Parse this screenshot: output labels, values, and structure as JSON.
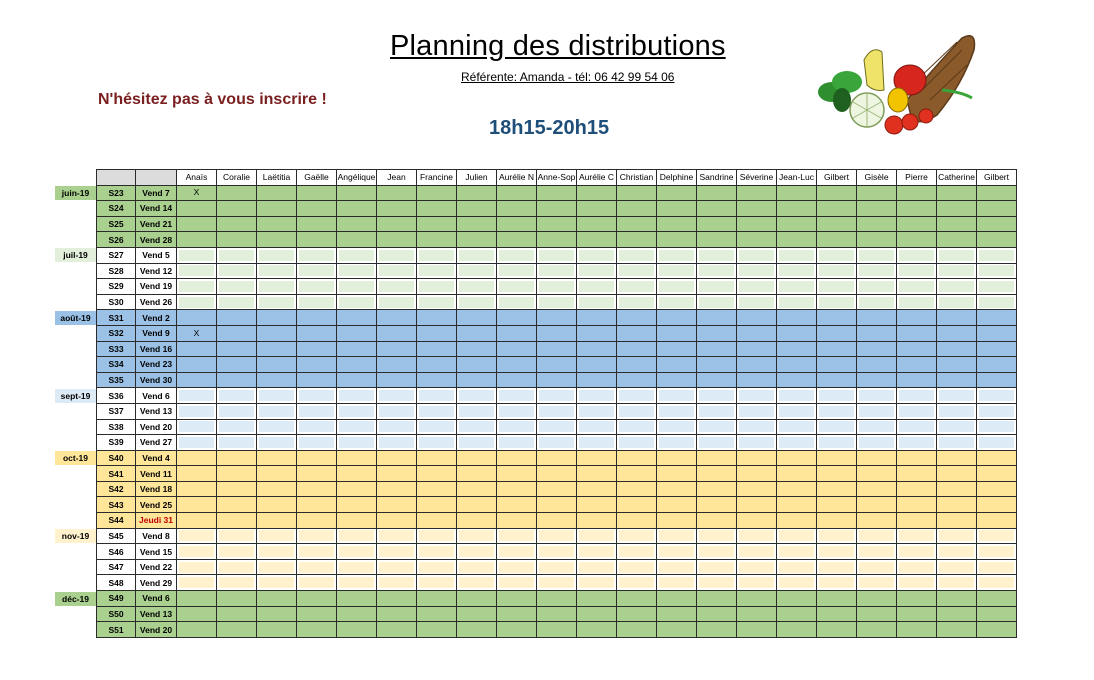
{
  "header": {
    "title": "Planning des distributions",
    "referent": "Référente: Amanda - tél: 06 42 99 54 06",
    "cta": "N'hésitez pas à vous inscrire !",
    "hours": "18h15-20h15"
  },
  "columns": [
    "Anaïs",
    "Coralie",
    "Laëtitia",
    "Gaëlle",
    "Angélique",
    "Jean",
    "Francine",
    "Julien",
    "Aurélie N",
    "Anne-Sop",
    "Aurélie C",
    "Christian",
    "Delphine",
    "Sandrine",
    "Séverine",
    "Jean-Luc",
    "Gilbert",
    "Gisèle",
    "Pierre",
    "Catherine",
    "Gilbert"
  ],
  "months": [
    {
      "label": "juin-19",
      "row": 0,
      "color": "#a9d08e"
    },
    {
      "label": "juil-19",
      "row": 4,
      "color": "#e2efda"
    },
    {
      "label": "août-19",
      "row": 8,
      "color": "#9bc2e6"
    },
    {
      "label": "sept-19",
      "row": 13,
      "color": "#ddebf7"
    },
    {
      "label": "oct-19",
      "row": 17,
      "color": "#ffe699"
    },
    {
      "label": "nov-19",
      "row": 22,
      "color": "#fff2cc"
    },
    {
      "label": "déc-19",
      "row": 26,
      "color": "#a9d08e"
    }
  ],
  "rows": [
    {
      "week": "S23",
      "date": "Vend 7",
      "row_color": "#a9d08e",
      "cell_color": "#a9d08e",
      "marks": [
        0
      ]
    },
    {
      "week": "S24",
      "date": "Vend 14",
      "row_color": "#a9d08e",
      "cell_color": "#a9d08e",
      "marks": []
    },
    {
      "week": "S25",
      "date": "Vend 21",
      "row_color": "#a9d08e",
      "cell_color": "#a9d08e",
      "marks": []
    },
    {
      "week": "S26",
      "date": "Vend 28",
      "row_color": "#a9d08e",
      "cell_color": "#a9d08e",
      "marks": []
    },
    {
      "week": "S27",
      "date": "Vend 5",
      "row_color": "#ffffff",
      "cell_color": "#e2efda",
      "marks": []
    },
    {
      "week": "S28",
      "date": "Vend 12",
      "row_color": "#ffffff",
      "cell_color": "#e2efda",
      "marks": []
    },
    {
      "week": "S29",
      "date": "Vend 19",
      "row_color": "#ffffff",
      "cell_color": "#e2efda",
      "marks": []
    },
    {
      "week": "S30",
      "date": "Vend 26",
      "row_color": "#ffffff",
      "cell_color": "#e2efda",
      "marks": []
    },
    {
      "week": "S31",
      "date": "Vend 2",
      "row_color": "#9bc2e6",
      "cell_color": "#9bc2e6",
      "marks": []
    },
    {
      "week": "S32",
      "date": "Vend 9",
      "row_color": "#9bc2e6",
      "cell_color": "#9bc2e6",
      "marks": [
        0
      ]
    },
    {
      "week": "S33",
      "date": "Vend 16",
      "row_color": "#9bc2e6",
      "cell_color": "#9bc2e6",
      "marks": []
    },
    {
      "week": "S34",
      "date": "Vend 23",
      "row_color": "#9bc2e6",
      "cell_color": "#9bc2e6",
      "marks": []
    },
    {
      "week": "S35",
      "date": "Vend 30",
      "row_color": "#9bc2e6",
      "cell_color": "#9bc2e6",
      "marks": []
    },
    {
      "week": "S36",
      "date": "Vend 6",
      "row_color": "#ffffff",
      "cell_color": "#ddebf7",
      "marks": []
    },
    {
      "week": "S37",
      "date": "Vend 13",
      "row_color": "#ffffff",
      "cell_color": "#ddebf7",
      "marks": []
    },
    {
      "week": "S38",
      "date": "Vend 20",
      "row_color": "#ffffff",
      "cell_color": "#ddebf7",
      "marks": []
    },
    {
      "week": "S39",
      "date": "Vend 27",
      "row_color": "#ffffff",
      "cell_color": "#ddebf7",
      "marks": []
    },
    {
      "week": "S40",
      "date": "Vend 4",
      "row_color": "#ffe699",
      "cell_color": "#ffe699",
      "marks": []
    },
    {
      "week": "S41",
      "date": "Vend 11",
      "row_color": "#ffe699",
      "cell_color": "#ffe699",
      "marks": []
    },
    {
      "week": "S42",
      "date": "Vend 18",
      "row_color": "#ffe699",
      "cell_color": "#ffe699",
      "marks": []
    },
    {
      "week": "S43",
      "date": "Vend 25",
      "row_color": "#ffe699",
      "cell_color": "#ffe699",
      "marks": []
    },
    {
      "week": "S44",
      "date": "Jeudi 31",
      "row_color": "#ffe699",
      "cell_color": "#ffe699",
      "marks": [],
      "date_color": "#c00000"
    },
    {
      "week": "S45",
      "date": "Vend 8",
      "row_color": "#ffffff",
      "cell_color": "#fff2cc",
      "marks": []
    },
    {
      "week": "S46",
      "date": "Vend 15",
      "row_color": "#ffffff",
      "cell_color": "#fff2cc",
      "marks": []
    },
    {
      "week": "S47",
      "date": "Vend 22",
      "row_color": "#ffffff",
      "cell_color": "#fff2cc",
      "marks": []
    },
    {
      "week": "S48",
      "date": "Vend 29",
      "row_color": "#ffffff",
      "cell_color": "#fff2cc",
      "marks": []
    },
    {
      "week": "S49",
      "date": "Vend 6",
      "row_color": "#a9d08e",
      "cell_color": "#a9d08e",
      "marks": []
    },
    {
      "week": "S50",
      "date": "Vend 13",
      "row_color": "#a9d08e",
      "cell_color": "#a9d08e",
      "marks": []
    },
    {
      "week": "S51",
      "date": "Vend 20",
      "row_color": "#a9d08e",
      "cell_color": "#a9d08e",
      "marks": []
    }
  ],
  "mark_symbol": "X",
  "image": {
    "icon": "vegetable-cornucopia-icon"
  }
}
